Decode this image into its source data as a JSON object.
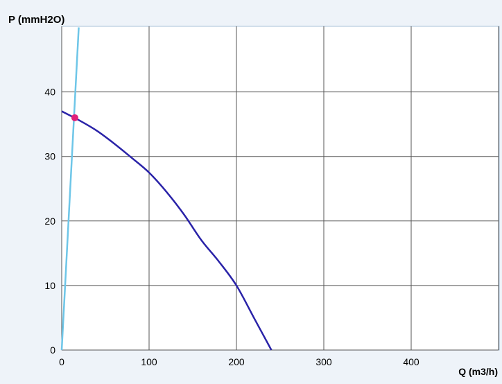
{
  "chart_data": {
    "type": "line",
    "ylabel": "P (mmH2O)",
    "xlabel": "Q (m3/h)",
    "xlim": [
      0,
      500
    ],
    "ylim": [
      0,
      50
    ],
    "x_ticks": [
      0,
      100,
      200,
      300,
      400
    ],
    "y_ticks": [
      0,
      10,
      20,
      30,
      40
    ],
    "grid": true,
    "series": [
      {
        "color": "#2a23a8",
        "x": [
          0,
          20,
          40,
          60,
          80,
          100,
          120,
          140,
          160,
          180,
          200,
          220,
          240
        ],
        "y": [
          37,
          35.6,
          34,
          32,
          29.8,
          27.5,
          24.5,
          21,
          17,
          13.7,
          10,
          5,
          0
        ]
      },
      {
        "color": "#6ec6e8",
        "x": [
          0,
          19.5
        ],
        "y": [
          0,
          50
        ]
      }
    ],
    "points": [
      {
        "x": 15,
        "y": 36,
        "color": "#e0207a"
      }
    ]
  }
}
